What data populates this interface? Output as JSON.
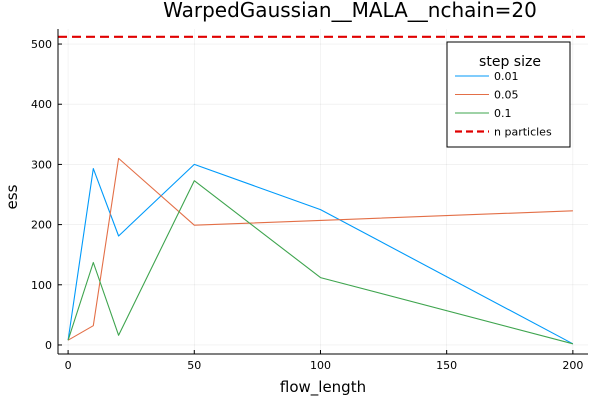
{
  "chart_data": {
    "type": "line",
    "title": "WarpedGaussian__MALA__nchain=20",
    "xlabel": "flow_length",
    "ylabel": "ess",
    "xlim": [
      -4,
      206
    ],
    "ylim": [
      -15,
      525
    ],
    "xticks": [
      0,
      50,
      100,
      150,
      200
    ],
    "yticks": [
      0,
      100,
      200,
      300,
      400,
      500
    ],
    "grid": true,
    "legend": {
      "title": "step size",
      "position": "top-right"
    },
    "series": [
      {
        "name": "0.01",
        "color": "#009AFA",
        "style": "solid",
        "x": [
          0,
          10,
          20,
          50,
          100,
          200
        ],
        "y": [
          8,
          293,
          181,
          300,
          225,
          2
        ]
      },
      {
        "name": "0.05",
        "color": "#E36F47",
        "style": "solid",
        "x": [
          0,
          10,
          20,
          50,
          100,
          200
        ],
        "y": [
          8,
          32,
          310,
          199,
          207,
          223
        ]
      },
      {
        "name": "0.1",
        "color": "#3EA44E",
        "style": "solid",
        "x": [
          0,
          10,
          20,
          50,
          100,
          200
        ],
        "y": [
          8,
          137,
          16,
          273,
          112,
          2
        ]
      }
    ],
    "hlines": [
      {
        "name": "n particles",
        "y": 512,
        "color": "#E00000",
        "style": "dashed"
      }
    ]
  }
}
